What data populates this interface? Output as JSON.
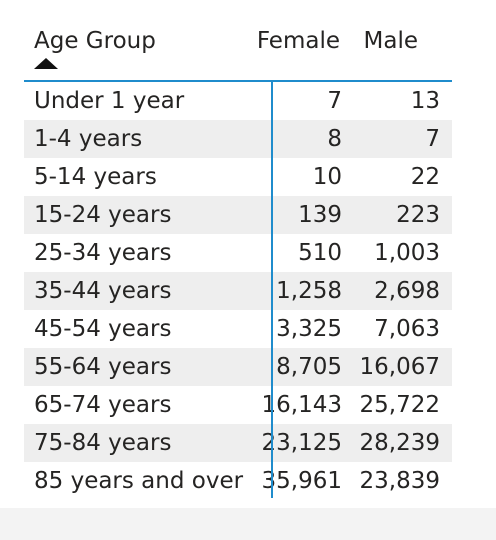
{
  "table": {
    "headers": {
      "age_group": "Age Group",
      "female": "Female",
      "male": "Male"
    },
    "sort_indicator": "sort-ascending-icon",
    "accent_color": "#1f8ccc",
    "rows": [
      {
        "age": "Under 1 year",
        "female": "7",
        "male": "13"
      },
      {
        "age": "1-4 years",
        "female": "8",
        "male": "7"
      },
      {
        "age": "5-14 years",
        "female": "10",
        "male": "22"
      },
      {
        "age": "15-24 years",
        "female": "139",
        "male": "223"
      },
      {
        "age": "25-34 years",
        "female": "510",
        "male": "1,003"
      },
      {
        "age": "35-44 years",
        "female": "1,258",
        "male": "2,698"
      },
      {
        "age": "45-54 years",
        "female": "3,325",
        "male": "7,063"
      },
      {
        "age": "55-64 years",
        "female": "8,705",
        "male": "16,067"
      },
      {
        "age": "65-74 years",
        "female": "16,143",
        "male": "25,722"
      },
      {
        "age": "75-84 years",
        "female": "23,125",
        "male": "28,239"
      },
      {
        "age": "85 years and over",
        "female": "35,961",
        "male": "23,839"
      }
    ]
  }
}
